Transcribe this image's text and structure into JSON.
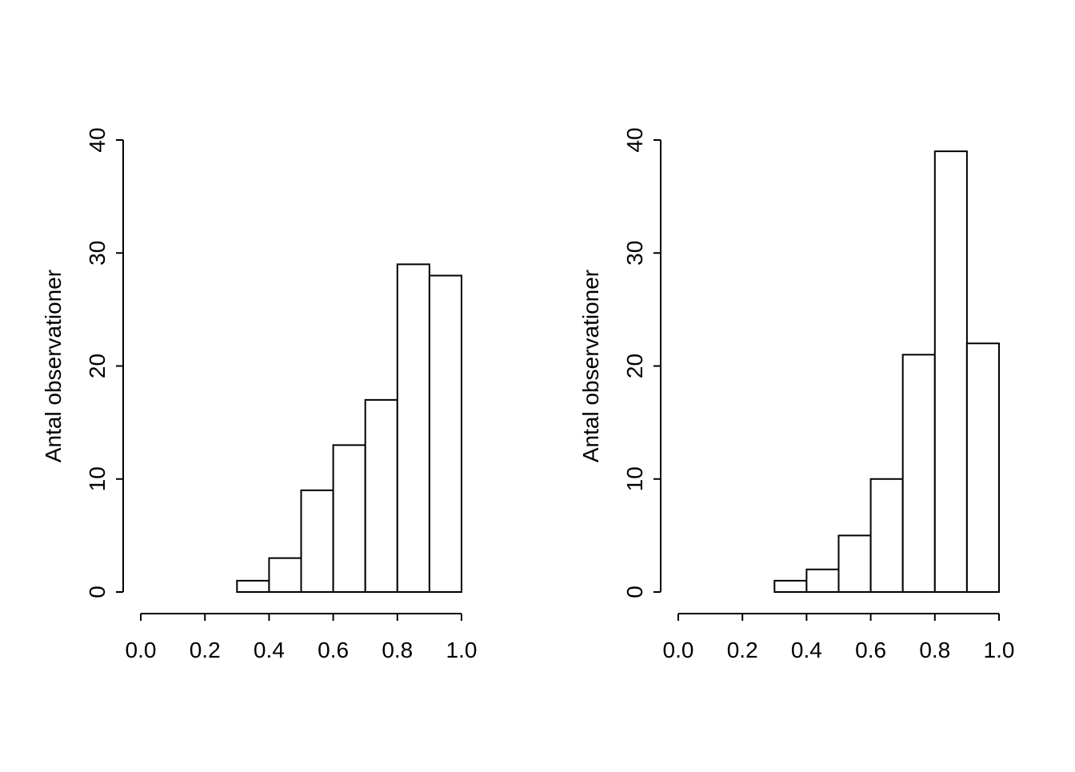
{
  "figure": {
    "background": "#ffffff",
    "panel_count": 2
  },
  "colors": {
    "bar_fill": "#ffffff",
    "bar_stroke": "#000000",
    "axis": "#000000",
    "text": "#000000"
  },
  "chart_data": [
    {
      "type": "bar",
      "subtype": "histogram",
      "title": "",
      "xlabel": "",
      "ylabel": "Antal observationer",
      "xlim": [
        0.0,
        1.0
      ],
      "ylim": [
        0,
        40
      ],
      "grid": false,
      "legend": false,
      "bin_edges": [
        0.3,
        0.4,
        0.5,
        0.6,
        0.7,
        0.8,
        0.9,
        1.0
      ],
      "values": [
        1,
        3,
        9,
        13,
        17,
        29,
        28
      ],
      "x_ticks": [
        "0.0",
        "0.2",
        "0.4",
        "0.6",
        "0.8",
        "1.0"
      ],
      "y_ticks": [
        "0",
        "10",
        "20",
        "30",
        "40"
      ]
    },
    {
      "type": "bar",
      "subtype": "histogram",
      "title": "",
      "xlabel": "",
      "ylabel": "Antal observationer",
      "xlim": [
        0.0,
        1.0
      ],
      "ylim": [
        0,
        40
      ],
      "grid": false,
      "legend": false,
      "bin_edges": [
        0.3,
        0.4,
        0.5,
        0.6,
        0.7,
        0.8,
        0.9,
        1.0
      ],
      "values": [
        1,
        2,
        5,
        10,
        21,
        39,
        22
      ],
      "x_ticks": [
        "0.0",
        "0.2",
        "0.4",
        "0.6",
        "0.8",
        "1.0"
      ],
      "y_ticks": [
        "0",
        "10",
        "20",
        "30",
        "40"
      ]
    }
  ]
}
